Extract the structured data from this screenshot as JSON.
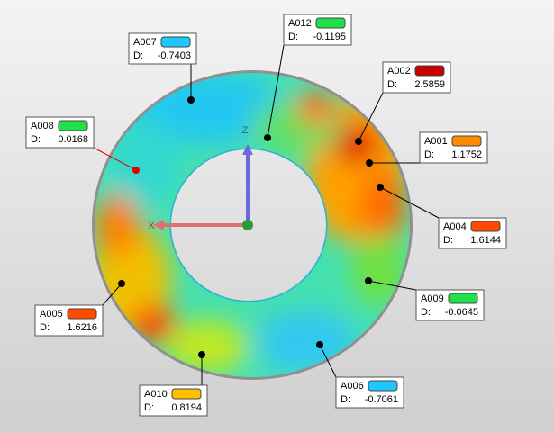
{
  "axes": {
    "z": "Z",
    "x": "X"
  },
  "callouts": [
    {
      "id": "A007",
      "label": "D:",
      "value": "-0.7403",
      "color": "#1ec8ff"
    },
    {
      "id": "A012",
      "label": "D:",
      "value": "-0.1195",
      "color": "#22e04a"
    },
    {
      "id": "A002",
      "label": "D:",
      "value": "2.5859",
      "color": "#c80000"
    },
    {
      "id": "A001",
      "label": "D:",
      "value": "1.1752",
      "color": "#ff8c00"
    },
    {
      "id": "A004",
      "label": "D:",
      "value": "1.6144",
      "color": "#ff4a00"
    },
    {
      "id": "A009",
      "label": "D:",
      "value": "-0.0645",
      "color": "#22e04a"
    },
    {
      "id": "A006",
      "label": "D:",
      "value": "-0.7061",
      "color": "#1ec8ff"
    },
    {
      "id": "A010",
      "label": "D:",
      "value": "0.8194",
      "color": "#ffc000"
    },
    {
      "id": "A005",
      "label": "D:",
      "value": "1.6216",
      "color": "#ff4a00"
    },
    {
      "id": "A008",
      "label": "D:",
      "value": "0.0168",
      "color": "#22e04a"
    }
  ]
}
